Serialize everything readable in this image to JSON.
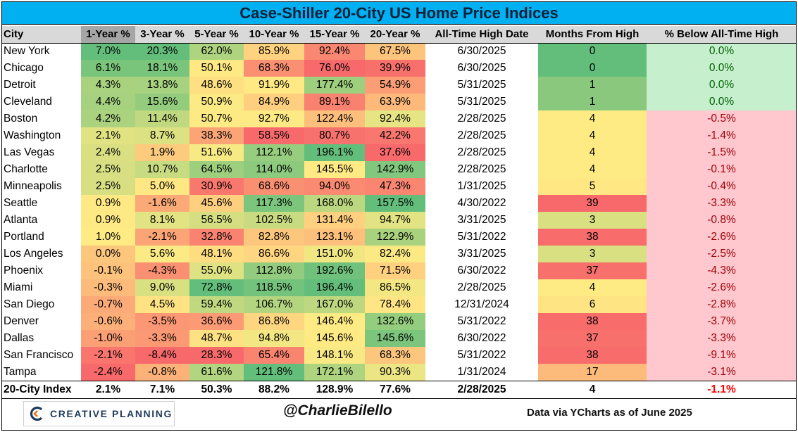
{
  "title": "Case-Shiller 20-City US Home Price Indices",
  "chart_data": {
    "type": "table",
    "title": "Case-Shiller 20-City US Home Price Indices",
    "columns": [
      "City",
      "1-Year %",
      "3-Year %",
      "5-Year %",
      "10-Year %",
      "15-Year %",
      "20-Year %",
      "All-Time High Date",
      "Months From High",
      "% Below All-Time High"
    ],
    "rows": [
      [
        "New York",
        "7.0%",
        "20.3%",
        "62.0%",
        "85.9%",
        "92.4%",
        "67.5%",
        "6/30/2025",
        "0",
        "0.0%"
      ],
      [
        "Chicago",
        "6.1%",
        "18.1%",
        "50.1%",
        "68.3%",
        "76.0%",
        "39.9%",
        "6/30/2025",
        "0",
        "0.0%"
      ],
      [
        "Detroit",
        "4.3%",
        "13.8%",
        "48.6%",
        "91.9%",
        "177.4%",
        "54.9%",
        "5/31/2025",
        "1",
        "0.0%"
      ],
      [
        "Cleveland",
        "4.4%",
        "15.6%",
        "50.9%",
        "84.9%",
        "89.1%",
        "63.9%",
        "5/31/2025",
        "1",
        "0.0%"
      ],
      [
        "Boston",
        "4.2%",
        "11.4%",
        "50.7%",
        "92.7%",
        "122.4%",
        "92.4%",
        "2/28/2025",
        "4",
        "-0.5%"
      ],
      [
        "Washington",
        "2.1%",
        "8.7%",
        "38.3%",
        "58.5%",
        "80.7%",
        "42.2%",
        "2/28/2025",
        "4",
        "-1.4%"
      ],
      [
        "Las Vegas",
        "2.4%",
        "1.9%",
        "51.6%",
        "112.1%",
        "196.1%",
        "37.6%",
        "2/28/2025",
        "4",
        "-1.5%"
      ],
      [
        "Charlotte",
        "2.5%",
        "10.7%",
        "64.5%",
        "114.0%",
        "145.5%",
        "142.9%",
        "2/28/2025",
        "4",
        "-0.1%"
      ],
      [
        "Minneapolis",
        "2.5%",
        "5.0%",
        "30.9%",
        "68.6%",
        "94.0%",
        "47.3%",
        "1/31/2025",
        "5",
        "-0.4%"
      ],
      [
        "Seattle",
        "0.9%",
        "-1.6%",
        "45.6%",
        "117.3%",
        "168.0%",
        "157.5%",
        "4/30/2022",
        "39",
        "-3.3%"
      ],
      [
        "Atlanta",
        "0.9%",
        "8.1%",
        "56.5%",
        "102.5%",
        "131.4%",
        "94.7%",
        "3/31/2025",
        "3",
        "-0.8%"
      ],
      [
        "Portland",
        "1.0%",
        "-2.1%",
        "32.8%",
        "82.8%",
        "123.1%",
        "122.9%",
        "5/31/2022",
        "38",
        "-2.6%"
      ],
      [
        "Los Angeles",
        "0.0%",
        "5.6%",
        "48.1%",
        "86.6%",
        "151.0%",
        "82.4%",
        "3/31/2025",
        "3",
        "-2.5%"
      ],
      [
        "Phoenix",
        "-0.1%",
        "-4.3%",
        "55.0%",
        "112.8%",
        "192.6%",
        "71.5%",
        "6/30/2022",
        "37",
        "-4.3%"
      ],
      [
        "Miami",
        "-0.3%",
        "9.0%",
        "72.8%",
        "118.5%",
        "196.4%",
        "86.5%",
        "2/28/2025",
        "4",
        "-2.6%"
      ],
      [
        "San Diego",
        "-0.7%",
        "4.5%",
        "59.4%",
        "106.7%",
        "167.0%",
        "78.4%",
        "12/31/2024",
        "6",
        "-2.8%"
      ],
      [
        "Denver",
        "-0.6%",
        "-3.5%",
        "36.6%",
        "86.8%",
        "146.4%",
        "132.6%",
        "5/31/2022",
        "38",
        "-3.7%"
      ],
      [
        "Dallas",
        "-1.0%",
        "-3.3%",
        "48.7%",
        "94.8%",
        "145.6%",
        "145.6%",
        "6/30/2022",
        "37",
        "-3.3%"
      ],
      [
        "San Francisco",
        "-2.1%",
        "-8.4%",
        "28.3%",
        "65.4%",
        "148.1%",
        "68.3%",
        "5/31/2022",
        "38",
        "-9.1%"
      ],
      [
        "Tampa",
        "-2.4%",
        "-0.8%",
        "61.6%",
        "121.8%",
        "172.1%",
        "90.3%",
        "1/31/2024",
        "17",
        "-3.1%"
      ]
    ],
    "total_row": [
      "20-City Index",
      "2.1%",
      "7.1%",
      "50.3%",
      "88.2%",
      "128.9%",
      "77.6%",
      "2/28/2025",
      "4",
      "-1.1%"
    ],
    "sorted_by": "1-Year %",
    "grid": true
  },
  "footer": {
    "logo_text": "CREATIVE PLANNING",
    "logo_icon": "creative-planning-logo-icon",
    "handle": "@CharlieBilello",
    "source": "Data via YCharts as of June 2025"
  },
  "colors": {
    "title_bar": "#00b0f0",
    "header_bg": "#d9d9d9",
    "sorted_header_bg": "#a6a6a6",
    "scale_low": "#f8696b",
    "scale_mid": "#ffeb84",
    "scale_high": "#63be7b",
    "zero_below_high": "#c6efce",
    "negative_below_high": "#ffc7ce",
    "negative_text": "#9c0006",
    "positive_text": "#006100"
  }
}
